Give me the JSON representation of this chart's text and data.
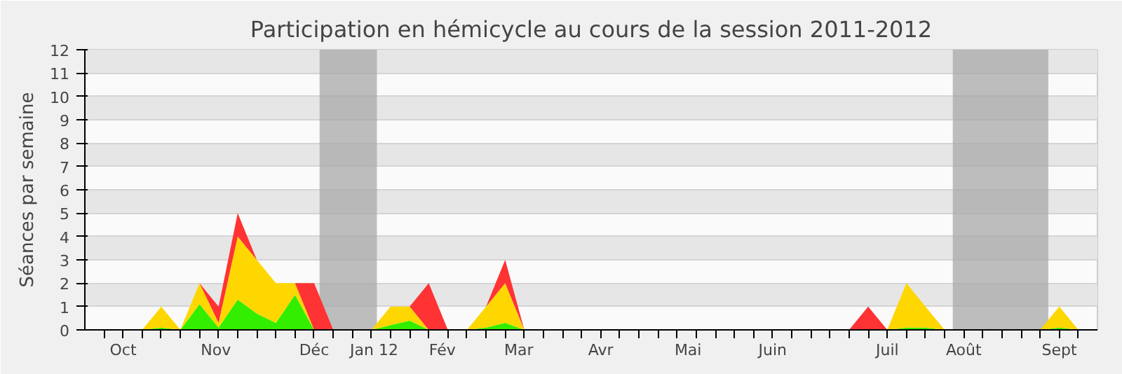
{
  "chart_data": {
    "type": "area",
    "stacked": true,
    "title": "Participation en hémicycle au cours de la session 2011-2012",
    "ylabel": "Séances par semaine",
    "x": [
      "2011-10-02",
      "2011-10-09",
      "2011-10-16",
      "2011-10-23",
      "2011-10-30",
      "2011-11-06",
      "2011-11-13",
      "2011-11-20",
      "2011-11-27",
      "2011-12-04",
      "2011-12-11",
      "2011-12-18",
      "2011-12-25",
      "2012-01-01",
      "2012-01-08",
      "2012-01-15",
      "2012-01-22",
      "2012-01-29",
      "2012-02-05",
      "2012-02-12",
      "2012-02-19",
      "2012-02-26",
      "2012-03-04",
      "2012-03-11",
      "2012-03-18",
      "2012-03-25",
      "2012-04-01",
      "2012-04-08",
      "2012-04-15",
      "2012-04-22",
      "2012-04-29",
      "2012-05-06",
      "2012-05-13",
      "2012-05-20",
      "2012-05-27",
      "2012-06-03",
      "2012-06-10",
      "2012-06-17",
      "2012-06-24",
      "2012-07-01",
      "2012-07-08",
      "2012-07-15",
      "2012-07-22",
      "2012-07-29",
      "2012-08-05",
      "2012-08-12",
      "2012-08-19",
      "2012-08-26",
      "2012-09-02",
      "2012-09-09",
      "2012-09-16",
      "2012-09-23",
      "2012-09-30"
    ],
    "series": [
      {
        "color": "#33ee00",
        "values": [
          0,
          0,
          0,
          0,
          0.1,
          0,
          1.1,
          0.1,
          1.3,
          0.7,
          0.3,
          1.5,
          0,
          0,
          0,
          0,
          0.2,
          0.4,
          0,
          0,
          0,
          0.1,
          0.3,
          0,
          0,
          0,
          0,
          0,
          0,
          0,
          0,
          0,
          0,
          0,
          0,
          0,
          0,
          0,
          0,
          0,
          0,
          0,
          0,
          0.1,
          0.1,
          0,
          0,
          0,
          0,
          0,
          0,
          0.1,
          0
        ]
      },
      {
        "color": "#ffd700",
        "values": [
          0,
          0,
          0,
          0,
          0.9,
          0,
          0.9,
          0.2,
          2.7,
          2.3,
          1.7,
          0.5,
          0,
          0,
          0,
          0,
          0.8,
          0.6,
          0,
          0,
          0,
          0.9,
          1.7,
          0,
          0,
          0,
          0,
          0,
          0,
          0,
          0,
          0,
          0,
          0,
          0,
          0,
          0,
          0,
          0,
          0,
          0,
          0,
          0,
          1.9,
          0.9,
          0,
          0,
          0,
          0,
          0,
          0,
          0.9,
          0
        ]
      },
      {
        "color": "#ff3333",
        "values": [
          0,
          0,
          0,
          0,
          0,
          0,
          0,
          0.7,
          1,
          0,
          0,
          0,
          2,
          0,
          0,
          0,
          0,
          0,
          2,
          0,
          0,
          0,
          1,
          0,
          0,
          0,
          0,
          0,
          0,
          0,
          0,
          0,
          0,
          0,
          0,
          0,
          0,
          0,
          0,
          0,
          0,
          1,
          0,
          0,
          0,
          0,
          0,
          0,
          0,
          0,
          0,
          0,
          0
        ]
      }
    ],
    "xlim": [
      "2011-10-02",
      "2012-10-07"
    ],
    "xticks": [
      {
        "value": "2011-10-09",
        "label": null
      },
      {
        "value": "2011-10-16",
        "label": null
      },
      {
        "value": "2011-10-23",
        "label": null
      },
      {
        "value": "2011-10-30",
        "label": null
      },
      {
        "value": "2011-11-06",
        "label": null
      },
      {
        "value": "2011-11-13",
        "label": null
      },
      {
        "value": "2011-11-20",
        "label": null
      },
      {
        "value": "2011-11-27",
        "label": null
      },
      {
        "value": "2011-12-04",
        "label": null
      },
      {
        "value": "2011-12-11",
        "label": null
      },
      {
        "value": "2011-12-18",
        "label": null
      },
      {
        "value": "2011-12-25",
        "label": null
      },
      {
        "value": "2012-01-01",
        "label": null
      },
      {
        "value": "2012-01-08",
        "label": null
      },
      {
        "value": "2012-01-15",
        "label": null
      },
      {
        "value": "2012-01-22",
        "label": null
      },
      {
        "value": "2012-01-29",
        "label": null
      },
      {
        "value": "2012-02-05",
        "label": null
      },
      {
        "value": "2012-02-12",
        "label": null
      },
      {
        "value": "2012-02-19",
        "label": null
      },
      {
        "value": "2012-02-26",
        "label": null
      },
      {
        "value": "2012-03-04",
        "label": null
      },
      {
        "value": "2012-03-11",
        "label": null
      },
      {
        "value": "2012-03-18",
        "label": null
      },
      {
        "value": "2012-03-25",
        "label": null
      },
      {
        "value": "2012-04-01",
        "label": null
      },
      {
        "value": "2012-04-08",
        "label": null
      },
      {
        "value": "2012-04-15",
        "label": null
      },
      {
        "value": "2012-04-22",
        "label": null
      },
      {
        "value": "2012-04-29",
        "label": null
      },
      {
        "value": "2012-05-06",
        "label": null
      },
      {
        "value": "2012-05-13",
        "label": null
      },
      {
        "value": "2012-05-20",
        "label": null
      },
      {
        "value": "2012-05-27",
        "label": null
      },
      {
        "value": "2012-06-03",
        "label": null
      },
      {
        "value": "2012-06-10",
        "label": null
      },
      {
        "value": "2012-06-17",
        "label": null
      },
      {
        "value": "2012-06-24",
        "label": null
      },
      {
        "value": "2012-07-01",
        "label": null
      },
      {
        "value": "2012-07-08",
        "label": null
      },
      {
        "value": "2012-07-15",
        "label": null
      },
      {
        "value": "2012-07-22",
        "label": null
      },
      {
        "value": "2012-07-29",
        "label": null
      },
      {
        "value": "2012-08-05",
        "label": null
      },
      {
        "value": "2012-08-12",
        "label": null
      },
      {
        "value": "2012-08-19",
        "label": null
      },
      {
        "value": "2012-08-26",
        "label": null
      },
      {
        "value": "2012-09-02",
        "label": null
      },
      {
        "value": "2012-09-09",
        "label": null
      },
      {
        "value": "2012-09-16",
        "label": null
      },
      {
        "value": "2012-09-23",
        "label": null
      },
      {
        "value": "2012-09-30",
        "label": null
      },
      {
        "value": "2011-10-16",
        "label": "Oct"
      },
      {
        "value": "2011-11-19",
        "label": "Nov"
      },
      {
        "value": "2011-12-25",
        "label": "Déc"
      },
      {
        "value": "2012-01-16",
        "label": "Jan 12"
      },
      {
        "value": "2012-02-10",
        "label": "Fév"
      },
      {
        "value": "2012-03-09",
        "label": "Mar"
      },
      {
        "value": "2012-04-08",
        "label": "Avr"
      },
      {
        "value": "2012-05-10",
        "label": "Mai"
      },
      {
        "value": "2012-06-10",
        "label": "Juin"
      },
      {
        "value": "2012-07-22",
        "label": "Juil"
      },
      {
        "value": "2012-08-19",
        "label": "Août"
      },
      {
        "value": "2012-09-23",
        "label": "Sept"
      }
    ],
    "ylim": [
      0,
      12
    ],
    "yticks": [
      0,
      1,
      2,
      3,
      4,
      5,
      6,
      7,
      8,
      9,
      10,
      11,
      12
    ],
    "grid": "y",
    "bands": [
      {
        "axis": "x",
        "from": "2011-12-27",
        "to": "2012-01-17",
        "color": "#a8a8a8"
      },
      {
        "axis": "x",
        "from": "2012-08-15",
        "to": "2012-09-19",
        "color": "#a8a8a8"
      }
    ]
  }
}
